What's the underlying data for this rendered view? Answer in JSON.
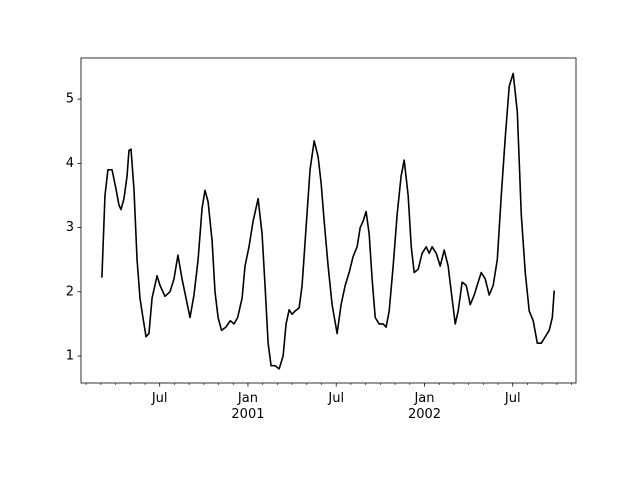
{
  "chart_data": {
    "type": "line",
    "x": [
      2.07,
      2.28,
      2.48,
      2.76,
      3.03,
      3.23,
      3.37,
      3.57,
      3.78,
      3.91,
      4.05,
      4.25,
      4.46,
      4.66,
      4.86,
      5.07,
      5.27,
      5.48,
      5.82,
      6.02,
      6.36,
      6.7,
      6.97,
      7.24,
      7.52,
      7.79,
      8.06,
      8.33,
      8.61,
      8.88,
      9.08,
      9.29,
      9.56,
      9.76,
      9.97,
      10.2,
      10.5,
      10.8,
      11.05,
      11.3,
      11.6,
      11.8,
      12.07,
      12.35,
      12.69,
      12.96,
      13.16,
      13.37,
      13.57,
      13.84,
      14.12,
      14.39,
      14.59,
      14.8,
      15.0,
      15.2,
      15.48,
      15.68,
      15.95,
      16.22,
      16.5,
      16.77,
      16.97,
      17.18,
      17.45,
      17.72,
      18.06,
      18.33,
      18.61,
      18.88,
      19.15,
      19.42,
      19.63,
      19.83,
      20.03,
      20.24,
      20.44,
      20.65,
      20.92,
      21.19,
      21.39,
      21.6,
      21.87,
      22.14,
      22.41,
      22.62,
      22.89,
      23.1,
      23.3,
      23.57,
      23.84,
      24.12,
      24.32,
      24.52,
      24.8,
      25.07,
      25.34,
      25.61,
      25.82,
      26.09,
      26.29,
      26.56,
      26.84,
      27.11,
      27.38,
      27.65,
      27.86,
      28.13,
      28.4,
      28.67,
      28.95,
      29.22,
      29.49,
      29.76,
      30.03,
      30.31,
      30.58,
      30.85,
      31.12,
      31.39,
      31.67,
      31.94,
      32.21,
      32.48,
      32.69,
      32.82
    ],
    "series": [
      {
        "color": "#000000",
        "values": [
          2.22,
          3.5,
          3.9,
          3.9,
          3.6,
          3.35,
          3.28,
          3.45,
          3.8,
          4.2,
          4.22,
          3.6,
          2.5,
          1.9,
          1.6,
          1.3,
          1.35,
          1.9,
          2.25,
          2.1,
          1.93,
          2.0,
          2.2,
          2.57,
          2.2,
          1.9,
          1.6,
          1.95,
          2.5,
          3.3,
          3.58,
          3.4,
          2.8,
          2.0,
          1.6,
          1.4,
          1.45,
          1.55,
          1.5,
          1.6,
          1.9,
          2.4,
          2.7,
          3.1,
          3.45,
          2.9,
          2.1,
          1.2,
          0.85,
          0.85,
          0.8,
          1.0,
          1.5,
          1.72,
          1.65,
          1.7,
          1.75,
          2.1,
          3.0,
          3.9,
          4.35,
          4.1,
          3.7,
          3.1,
          2.4,
          1.8,
          1.35,
          1.8,
          2.1,
          2.3,
          2.55,
          2.7,
          3.0,
          3.1,
          3.25,
          2.9,
          2.2,
          1.6,
          1.5,
          1.5,
          1.45,
          1.7,
          2.4,
          3.2,
          3.8,
          4.05,
          3.5,
          2.7,
          2.3,
          2.35,
          2.6,
          2.7,
          2.6,
          2.7,
          2.6,
          2.4,
          2.65,
          2.4,
          2.0,
          1.5,
          1.7,
          2.15,
          2.1,
          1.8,
          1.95,
          2.15,
          2.3,
          2.2,
          1.95,
          2.1,
          2.5,
          3.5,
          4.4,
          5.2,
          5.4,
          4.8,
          3.2,
          2.3,
          1.7,
          1.55,
          1.2,
          1.2,
          1.3,
          1.4,
          1.6,
          2.02
        ]
      }
    ],
    "xlim": [
      0.65,
      34.3
    ],
    "xticks": [
      {
        "value": 6,
        "label": "Jul"
      },
      {
        "value": 12,
        "label": "Jan\n2001"
      },
      {
        "value": 18,
        "label": "Jul"
      },
      {
        "value": 24,
        "label": "Jan\n2002"
      },
      {
        "value": 30,
        "label": "Jul"
      }
    ],
    "xminorticks": [
      1,
      2,
      3,
      4,
      5,
      7,
      8,
      9,
      10,
      11,
      13,
      14,
      15,
      16,
      17,
      19,
      20,
      21,
      22,
      23,
      25,
      26,
      27,
      28,
      29,
      31,
      32,
      33,
      34
    ],
    "ylim": [
      0.58,
      5.64
    ],
    "yticks": [
      1,
      2,
      3,
      4,
      5
    ]
  }
}
